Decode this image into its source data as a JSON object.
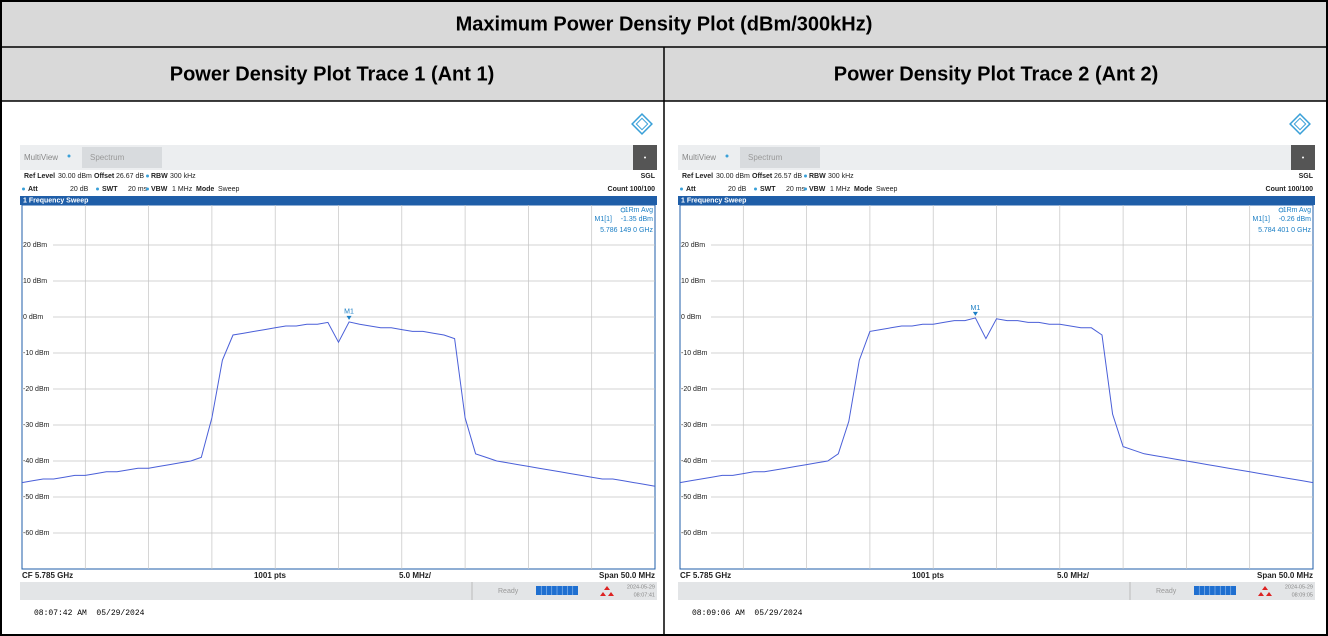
{
  "header": {
    "title": "Maximum Power Density Plot (dBm/300kHz)"
  },
  "chart_data": [
    {
      "type": "line",
      "caption": "Power Density Plot Trace 1 (Ant 1)",
      "tabs": [
        "MultiView",
        "Spectrum"
      ],
      "info": [
        [
          "Ref Level",
          "30.00 dBm"
        ],
        [
          "Offset",
          "26.67 dB"
        ],
        [
          "RBW",
          "300 kHz"
        ],
        [
          "Att",
          "20 dB"
        ],
        [
          "SWT",
          "20 ms"
        ],
        [
          "VBW",
          "1 MHz"
        ],
        [
          "Mode",
          "Sweep"
        ]
      ],
      "sgl": "SGL",
      "count": "Count 100/100",
      "window_title": "1 Frequency Sweep",
      "trace_label": "1Rm Avg",
      "marker_name": "M1[1]",
      "marker_level": "-1.35 dBm",
      "marker_freq": "5.786 149 0 GHz",
      "marker_tag": "M1",
      "footer": [
        "CF 5.785 GHz",
        "1001 pts",
        "5.0 MHz/",
        "Span 50.0 MHz"
      ],
      "status": "Ready",
      "date": "2024-05-29",
      "time": "08:07:41",
      "timestamp": "08:07:42 AM  05/29/2024",
      "ylim": [
        -70,
        30
      ],
      "yticks": [
        {
          "value": 20,
          "label": "20 dBm"
        },
        {
          "value": 10,
          "label": "10 dBm"
        },
        {
          "value": 0,
          "label": "0 dBm"
        },
        {
          "value": -10,
          "label": "-10 dBm"
        },
        {
          "value": -20,
          "label": "-20 dBm"
        },
        {
          "value": -30,
          "label": "-30 dBm"
        },
        {
          "value": -40,
          "label": "-40 dBm"
        },
        {
          "value": -50,
          "label": "-50 dBm"
        },
        {
          "value": -60,
          "label": "-60 dBm"
        }
      ],
      "grid": true,
      "color": "#4a5fd8",
      "values": [
        -46,
        -45.5,
        -45,
        -45,
        -44.5,
        -44,
        -44,
        -43.5,
        -43,
        -43,
        -42.5,
        -42,
        -42,
        -41.5,
        -41,
        -40.5,
        -40,
        -39,
        -28,
        -12,
        -5,
        -4.5,
        -4,
        -3.5,
        -3,
        -2.5,
        -2.5,
        -2,
        -2,
        -1.5,
        -7,
        -1.35,
        -2,
        -2.5,
        -3,
        -3,
        -3.5,
        -4,
        -4,
        -4.5,
        -5,
        -6,
        -28,
        -38,
        -39,
        -40,
        -40.5,
        -41,
        -41.5,
        -42,
        -42.5,
        -43,
        -43.5,
        -44,
        -44.5,
        -45,
        -45,
        -45.5,
        -46,
        -46.5,
        -47
      ]
    },
    {
      "type": "line",
      "caption": "Power Density Plot Trace 2 (Ant 2)",
      "tabs": [
        "MultiView",
        "Spectrum"
      ],
      "info": [
        [
          "Ref Level",
          "30.00 dBm"
        ],
        [
          "Offset",
          "26.57 dB"
        ],
        [
          "RBW",
          "300 kHz"
        ],
        [
          "Att",
          "20 dB"
        ],
        [
          "SWT",
          "20 ms"
        ],
        [
          "VBW",
          "1 MHz"
        ],
        [
          "Mode",
          "Sweep"
        ]
      ],
      "sgl": "SGL",
      "count": "Count 100/100",
      "window_title": "1 Frequency Sweep",
      "trace_label": "1Rm Avg",
      "marker_name": "M1[1]",
      "marker_level": "-0.26 dBm",
      "marker_freq": "5.784 401 0 GHz",
      "marker_tag": "M1",
      "footer": [
        "CF 5.785 GHz",
        "1001 pts",
        "5.0 MHz/",
        "Span 50.0 MHz"
      ],
      "status": "Ready",
      "date": "2024-05-29",
      "time": "08:09:05",
      "timestamp": "08:09:06 AM  05/29/2024",
      "ylim": [
        -70,
        30
      ],
      "yticks": [
        {
          "value": 20,
          "label": "20 dBm"
        },
        {
          "value": 10,
          "label": "10 dBm"
        },
        {
          "value": 0,
          "label": "0 dBm"
        },
        {
          "value": -10,
          "label": "-10 dBm"
        },
        {
          "value": -20,
          "label": "-20 dBm"
        },
        {
          "value": -30,
          "label": "-30 dBm"
        },
        {
          "value": -40,
          "label": "-40 dBm"
        },
        {
          "value": -50,
          "label": "-50 dBm"
        },
        {
          "value": -60,
          "label": "-60 dBm"
        }
      ],
      "grid": true,
      "color": "#4a5fd8",
      "values": [
        -46,
        -45.5,
        -45,
        -44.5,
        -44,
        -44,
        -43.5,
        -43,
        -43,
        -42.5,
        -42,
        -41.5,
        -41,
        -40.5,
        -40,
        -38,
        -29,
        -12,
        -4,
        -3.5,
        -3,
        -2.5,
        -2.5,
        -2,
        -2,
        -1.5,
        -1,
        -1,
        -0.26,
        -6,
        -0.5,
        -1,
        -1,
        -1.5,
        -1.5,
        -2,
        -2,
        -2.5,
        -3,
        -3,
        -5,
        -27,
        -36,
        -37,
        -38,
        -38.5,
        -39,
        -39.5,
        -40,
        -40.5,
        -41,
        -41.5,
        -42,
        -42.5,
        -43,
        -43.5,
        -44,
        -44.5,
        -45,
        -45.5,
        -46
      ]
    }
  ]
}
